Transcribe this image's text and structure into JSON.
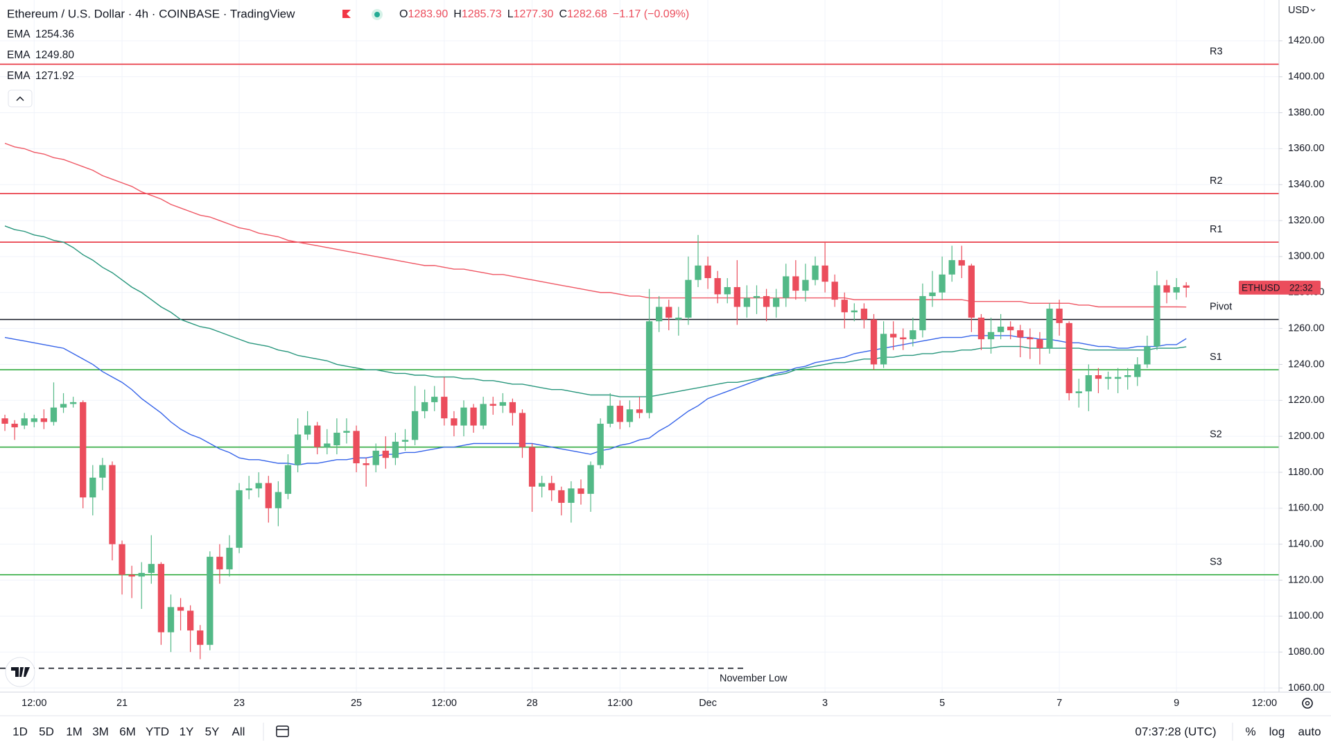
{
  "chart_data": {
    "type": "candlestick",
    "title": "Ethereum / U.S. Dollar · 4h · COINBASE · TradingView",
    "ohlc": [
      {
        "key": "O",
        "value": "1283.90"
      },
      {
        "key": "H",
        "value": "1285.73"
      },
      {
        "key": "L",
        "value": "1277.30"
      },
      {
        "key": "C",
        "value": "1282.68"
      }
    ],
    "change": "−1.17 (−0.09%)",
    "currency": "USD",
    "symbol": "ETHUSD",
    "countdown": "22:32",
    "up_color": "#53b987",
    "down_color": "#eb4d5c",
    "ylim": [
      1057.7,
      1442.7
    ],
    "yticks": [
      {
        "value": 1060,
        "label": "1060.00"
      },
      {
        "value": 1080,
        "label": "1080.00"
      },
      {
        "value": 1100,
        "label": "1100.00"
      },
      {
        "value": 1120,
        "label": "1120.00"
      },
      {
        "value": 1140,
        "label": "1140.00"
      },
      {
        "value": 1160,
        "label": "1160.00"
      },
      {
        "value": 1180,
        "label": "1180.00"
      },
      {
        "value": 1200,
        "label": "1200.00"
      },
      {
        "value": 1220,
        "label": "1220.00"
      },
      {
        "value": 1240,
        "label": "1240.00"
      },
      {
        "value": 1260,
        "label": "1260.00"
      },
      {
        "value": 1280,
        "label": "1280.00"
      },
      {
        "value": 1300,
        "label": "1300.00"
      },
      {
        "value": 1320,
        "label": "1320.00"
      },
      {
        "value": 1340,
        "label": "1340.00"
      },
      {
        "value": 1360,
        "label": "1360.00"
      },
      {
        "value": 1380,
        "label": "1380.00"
      },
      {
        "value": 1400,
        "label": "1400.00"
      },
      {
        "value": 1420,
        "label": "1420.00"
      }
    ],
    "grid": true,
    "categories": [
      null,
      null,
      null,
      "12:00",
      null,
      null,
      null,
      null,
      null,
      null,
      null,
      null,
      "21",
      null,
      null,
      null,
      null,
      null,
      null,
      null,
      null,
      null,
      null,
      null,
      "23",
      null,
      null,
      null,
      null,
      null,
      null,
      null,
      null,
      null,
      null,
      null,
      "25",
      null,
      null,
      null,
      null,
      null,
      null,
      null,
      null,
      "12:00",
      null,
      null,
      null,
      null,
      null,
      null,
      null,
      null,
      "28",
      null,
      null,
      null,
      null,
      null,
      null,
      null,
      null,
      "12:00",
      null,
      null,
      null,
      null,
      null,
      null,
      null,
      null,
      "Dec",
      null,
      null,
      null,
      null,
      null,
      null,
      null,
      null,
      null,
      null,
      null,
      "3",
      null,
      null,
      null,
      null,
      null,
      null,
      null,
      null,
      null,
      null,
      null,
      "5",
      null,
      null,
      null,
      null,
      null,
      null,
      null,
      null,
      null,
      null,
      null,
      "7",
      null,
      null,
      null,
      null,
      null,
      null,
      null,
      null,
      null,
      null,
      null,
      "9",
      null,
      null,
      null,
      null,
      null,
      null,
      null,
      null,
      "12:00",
      null
    ],
    "open": [
      1210,
      1207,
      1206,
      1208,
      1210,
      1208,
      1216,
      1218,
      1219,
      1166,
      1177,
      1184,
      1140,
      1123,
      1122,
      1124,
      1129,
      1091,
      1105,
      1103,
      1092,
      1084,
      1133,
      1126,
      1138,
      1170,
      1171,
      1174,
      1160,
      1168,
      1184,
      1201,
      1206,
      1194,
      1195,
      1202,
      1203,
      1185,
      1184,
      1192,
      1188,
      1197,
      1198,
      1214,
      1219,
      1222,
      1210,
      1206,
      1216,
      1206,
      1218,
      1217,
      1219,
      1213,
      1194,
      1172,
      1174,
      1170,
      1163,
      1171,
      1168,
      1184,
      1207,
      1217,
      1208,
      1215,
      1213,
      1264,
      1272,
      1265,
      1266,
      1287,
      1295,
      1288,
      1279,
      1283,
      1272,
      1277,
      1278,
      1272,
      1277,
      1289,
      1281,
      1287,
      1295,
      1286,
      1276,
      1269,
      1271,
      1265,
      1240,
      1257,
      1255,
      1254,
      1259,
      1278,
      1280,
      1290,
      1298,
      1295,
      1266,
      1254,
      1258,
      1261,
      1259,
      1255,
      1254,
      1249,
      1271,
      1263,
      1224,
      1225,
      1234,
      1232,
      1232,
      1233,
      1233,
      1240,
      1250,
      1284,
      1280,
      1283.9,
      null,
      null,
      null,
      null,
      null,
      null,
      null,
      null,
      null
    ],
    "high": [
      1212,
      1209,
      1213,
      1212,
      1215,
      1230,
      1224,
      1222,
      1220,
      1184,
      1188,
      1186,
      1142,
      1128,
      1130,
      1145,
      1130,
      1112,
      1110,
      1106,
      1095,
      1136,
      1140,
      1145,
      1174,
      1178,
      1180,
      1178,
      1175,
      1190,
      1210,
      1214,
      1208,
      1204,
      1210,
      1210,
      1206,
      1188,
      1196,
      1200,
      1202,
      1204,
      1228,
      1226,
      1228,
      1233,
      1214,
      1220,
      1218,
      1222,
      1222,
      1224,
      1221,
      1215,
      1196,
      1178,
      1178,
      1172,
      1175,
      1176,
      1186,
      1210,
      1224,
      1220,
      1220,
      1222,
      1282,
      1278,
      1276,
      1272,
      1300,
      1312,
      1300,
      1292,
      1288,
      1298,
      1284,
      1284,
      1282,
      1282,
      1296,
      1298,
      1296,
      1300,
      1308,
      1290,
      1280,
      1274,
      1274,
      1268,
      1264,
      1264,
      1260,
      1266,
      1285,
      1292,
      1300,
      1306,
      1306,
      1296,
      1268,
      1266,
      1268,
      1264,
      1262,
      1260,
      1258,
      1274,
      1276,
      1264,
      1232,
      1240,
      1238,
      1236,
      1238,
      1238,
      1244,
      1256,
      1292,
      1287,
      1288,
      1285.73,
      null,
      null,
      null,
      null,
      null,
      null,
      null,
      null,
      null
    ],
    "low": [
      1203,
      1198,
      1204,
      1205,
      1204,
      1206,
      1213,
      1216,
      1160,
      1156,
      1170,
      1131,
      1112,
      1110,
      1104,
      1118,
      1084,
      1080,
      1092,
      1080,
      1076,
      1081,
      1118,
      1122,
      1135,
      1165,
      1166,
      1152,
      1150,
      1165,
      1180,
      1198,
      1190,
      1190,
      1190,
      1196,
      1180,
      1172,
      1180,
      1182,
      1184,
      1192,
      1195,
      1210,
      1214,
      1206,
      1200,
      1200,
      1202,
      1204,
      1212,
      1213,
      1206,
      1188,
      1158,
      1166,
      1164,
      1156,
      1152,
      1162,
      1158,
      1182,
      1205,
      1204,
      1205,
      1210,
      1210,
      1258,
      1259,
      1256,
      1262,
      1283,
      1282,
      1274,
      1274,
      1262,
      1266,
      1268,
      1264,
      1266,
      1272,
      1276,
      1275,
      1284,
      1280,
      1272,
      1260,
      1264,
      1260,
      1237,
      1238,
      1248,
      1248,
      1250,
      1255,
      1272,
      1276,
      1286,
      1288,
      1258,
      1248,
      1246,
      1254,
      1254,
      1244,
      1243,
      1240,
      1246,
      1256,
      1220,
      1216,
      1214,
      1224,
      1226,
      1224,
      1226,
      1228,
      1238,
      1248,
      1274,
      1276,
      1277.3,
      null,
      null,
      null,
      null,
      null,
      null,
      null,
      null,
      null
    ],
    "close": [
      1207,
      1205,
      1210,
      1210,
      1208,
      1216,
      1218,
      1219,
      1166,
      1177,
      1184,
      1140,
      1123,
      1122,
      1124,
      1129,
      1091,
      1105,
      1103,
      1092,
      1084,
      1133,
      1126,
      1138,
      1170,
      1171,
      1174,
      1160,
      1169,
      1184,
      1201,
      1206,
      1194,
      1196,
      1202,
      1203,
      1185,
      1184,
      1192,
      1188,
      1197,
      1198,
      1214,
      1219,
      1222,
      1210,
      1206,
      1216,
      1206,
      1218,
      1217,
      1219,
      1213,
      1194,
      1172,
      1174,
      1170,
      1163,
      1171,
      1168,
      1184,
      1207,
      1217,
      1208,
      1215,
      1213,
      1264,
      1272,
      1266,
      1266,
      1287,
      1295,
      1288,
      1279,
      1283,
      1272,
      1277,
      1278,
      1272,
      1277,
      1289,
      1281,
      1287,
      1295,
      1286,
      1276,
      1269,
      1270,
      1265,
      1240,
      1257,
      1255,
      1254,
      1259,
      1278,
      1280,
      1290,
      1298,
      1295,
      1266,
      1254,
      1258,
      1261,
      1259,
      1255,
      1254,
      1249,
      1271,
      1263,
      1224,
      1225,
      1234,
      1232,
      1233,
      1233,
      1234,
      1240,
      1250,
      1284,
      1280,
      1283,
      1282.68,
      null,
      null,
      null,
      null,
      null,
      null,
      null,
      null,
      null
    ],
    "series": [
      {
        "name": "EMA",
        "legend_value": "1254.36",
        "color": "#3563e9",
        "values": [
          1255,
          1254,
          1253,
          1252,
          1251,
          1250,
          1249,
          1246,
          1243,
          1240,
          1236,
          1233,
          1230,
          1226,
          1221,
          1217,
          1213,
          1208,
          1204,
          1201,
          1199,
          1196,
          1193,
          1191,
          1188,
          1187,
          1187,
          1186,
          1185,
          1185,
          1184,
          1185,
          1185,
          1186,
          1187,
          1187,
          1188,
          1188,
          1189,
          1190,
          1190,
          1191,
          1191,
          1192,
          1193,
          1194,
          1194,
          1195,
          1196,
          1196,
          1196,
          1196,
          1196,
          1196,
          1196,
          1195,
          1194,
          1193,
          1192,
          1191,
          1190,
          1192,
          1193,
          1195,
          1196,
          1198,
          1199,
          1203,
          1206,
          1210,
          1214,
          1217,
          1221,
          1223,
          1225,
          1227,
          1229,
          1231,
          1233,
          1235,
          1236,
          1238,
          1239,
          1241,
          1242,
          1243,
          1244,
          1246,
          1247,
          1248,
          1249,
          1250,
          1251,
          1252,
          1253,
          1254,
          1255,
          1255,
          1255,
          1256,
          1256,
          1256,
          1256,
          1256,
          1255,
          1255,
          1254,
          1254,
          1253,
          1252,
          1252,
          1251,
          1250,
          1250,
          1249,
          1249,
          1250,
          1250,
          1250,
          1251,
          1251,
          1254.36,
          null,
          null,
          null,
          null,
          null,
          null,
          null,
          null,
          null
        ]
      },
      {
        "name": "EMA",
        "legend_value": "1249.80",
        "color": "#27967c",
        "values": [
          1317,
          1315,
          1314,
          1312,
          1311,
          1309,
          1308,
          1305,
          1301,
          1298,
          1294,
          1291,
          1287,
          1283,
          1280,
          1276,
          1272,
          1269,
          1265,
          1263,
          1261,
          1260,
          1258,
          1256,
          1254,
          1252,
          1251,
          1250,
          1248,
          1247,
          1245,
          1244,
          1243,
          1242,
          1240,
          1239,
          1238,
          1237,
          1237,
          1236,
          1235,
          1235,
          1234,
          1234,
          1233,
          1233,
          1233,
          1232,
          1232,
          1231,
          1231,
          1230,
          1229,
          1229,
          1228,
          1227,
          1226,
          1226,
          1225,
          1224,
          1223,
          1223,
          1223,
          1222,
          1222,
          1222,
          1222,
          1223,
          1224,
          1225,
          1226,
          1227,
          1228,
          1229,
          1230,
          1230,
          1231,
          1232,
          1233,
          1234,
          1235,
          1237,
          1238,
          1239,
          1240,
          1241,
          1241,
          1242,
          1243,
          1243,
          1244,
          1244,
          1245,
          1245,
          1246,
          1246,
          1247,
          1247,
          1248,
          1248,
          1249,
          1249,
          1250,
          1250,
          1250,
          1249,
          1249,
          1249,
          1249,
          1249,
          1249,
          1248,
          1248,
          1248,
          1248,
          1248,
          1248,
          1248,
          1249,
          1249,
          1249,
          1249.8,
          null,
          null,
          null,
          null,
          null,
          null,
          null,
          null,
          null
        ]
      },
      {
        "name": "EMA",
        "legend_value": "1271.92",
        "color": "#ef5663",
        "values": [
          1363,
          1361,
          1360,
          1358,
          1357,
          1355,
          1354,
          1352,
          1350,
          1348,
          1345,
          1343,
          1341,
          1339,
          1336,
          1334,
          1332,
          1329,
          1327,
          1325,
          1323,
          1322,
          1320,
          1318,
          1316,
          1315,
          1313,
          1312,
          1311,
          1309,
          1308,
          1307,
          1306,
          1305,
          1304,
          1303,
          1302,
          1301,
          1300,
          1299,
          1298,
          1297,
          1296,
          1295,
          1295,
          1294,
          1293,
          1293,
          1292,
          1291,
          1290,
          1290,
          1289,
          1288,
          1287,
          1286,
          1285,
          1284,
          1283,
          1282,
          1281,
          1280,
          1280,
          1279,
          1278,
          1278,
          1277,
          1277,
          1277,
          1277,
          1277,
          1277,
          1277,
          1277,
          1277,
          1277,
          1277,
          1277,
          1277,
          1277,
          1277,
          1277,
          1277,
          1277,
          1277,
          1277,
          1277,
          1276,
          1276,
          1276,
          1276,
          1276,
          1276,
          1276,
          1276,
          1276,
          1276,
          1276,
          1276,
          1275,
          1275,
          1275,
          1275,
          1275,
          1275,
          1274,
          1274,
          1274,
          1274,
          1274,
          1273,
          1273,
          1272,
          1272,
          1272,
          1272,
          1272,
          1272,
          1272,
          1272,
          1272,
          1271.92,
          null,
          null,
          null,
          null,
          null,
          null,
          null,
          null,
          null
        ]
      }
    ],
    "levels": [
      {
        "label": "R3",
        "value": 1407,
        "color": "#e8333f"
      },
      {
        "label": "R2",
        "value": 1335,
        "color": "#e8333f"
      },
      {
        "label": "R1",
        "value": 1308,
        "color": "#e8333f"
      },
      {
        "label": "Pivot",
        "value": 1265,
        "color": "#131722"
      },
      {
        "label": "S1",
        "value": 1237,
        "color": "#2eaa3c"
      },
      {
        "label": "S2",
        "value": 1194,
        "color": "#2eaa3c"
      },
      {
        "label": "S3",
        "value": 1123,
        "color": "#2eaa3c"
      },
      {
        "label": "November Low",
        "value": 1071,
        "color": "#131722",
        "dashed": true
      }
    ]
  },
  "toolbar": {
    "ranges": [
      "1D",
      "5D",
      "1M",
      "3M",
      "6M",
      "YTD",
      "1Y",
      "5Y",
      "All"
    ],
    "clock": "07:37:28 (UTC)",
    "options": [
      "%",
      "log",
      "auto"
    ]
  }
}
